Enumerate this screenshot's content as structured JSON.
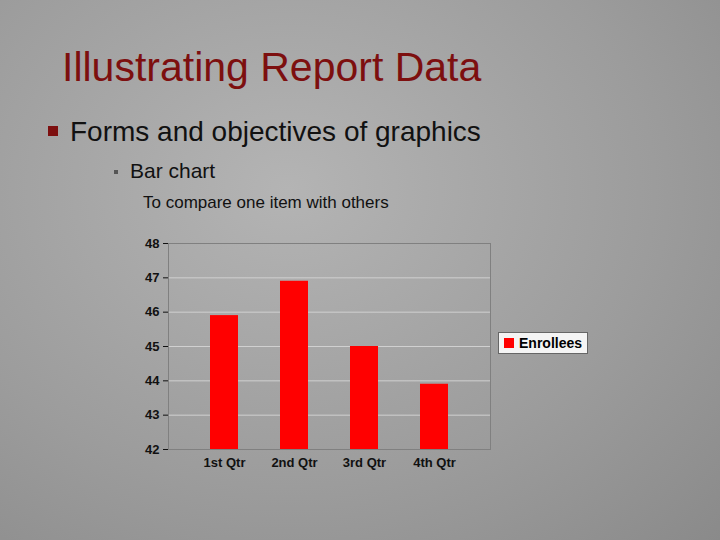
{
  "slide": {
    "title": "Illustrating Report Data",
    "bullet": "Forms and objectives of graphics",
    "sub_bullet": "Bar chart",
    "note": "To compare one item with others"
  },
  "chart_data": {
    "type": "bar",
    "categories": [
      "1st Qtr",
      "2nd Qtr",
      "3rd Qtr",
      "4th Qtr"
    ],
    "series": [
      {
        "name": "Enrollees",
        "color": "#ff0000",
        "values": [
          45.9,
          46.9,
          45.0,
          43.9
        ]
      }
    ],
    "ylim": [
      42,
      48
    ],
    "yticks": [
      42,
      43,
      44,
      45,
      46,
      47,
      48
    ],
    "grid": true,
    "legend": "right"
  }
}
